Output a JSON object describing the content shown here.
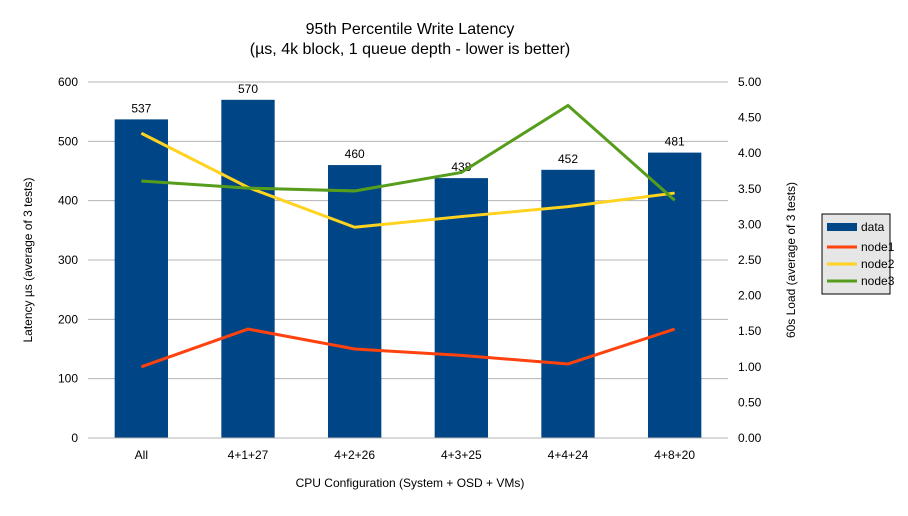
{
  "chart_data": {
    "type": "bar+line",
    "title": "95th Percentile Write Latency",
    "subtitle": "(µs, 4k block, 1 queue depth - lower is better)",
    "xlabel": "CPU Configuration (System + OSD + VMs)",
    "ylabel": "Latency µs (average of 3 tests)",
    "y2label": "60s Load (average of 3 tests)",
    "categories": [
      "All",
      "4+1+27",
      "4+2+26",
      "4+3+25",
      "4+4+24",
      "4+8+20"
    ],
    "ylim": [
      0,
      600
    ],
    "yticks": [
      "0",
      "100",
      "200",
      "300",
      "400",
      "500",
      "600"
    ],
    "y2lim": [
      0,
      5
    ],
    "y2ticks": [
      "0.00",
      "0.50",
      "1.00",
      "1.50",
      "2.00",
      "2.50",
      "3.00",
      "3.50",
      "4.00",
      "4.50",
      "5.00"
    ],
    "grid": true,
    "legend_position": "right",
    "bar_series": {
      "name": "data",
      "color": "#004586",
      "values": [
        537,
        570,
        460,
        438,
        452,
        481
      ],
      "labels": [
        "537",
        "570",
        "460",
        "438",
        "452",
        "481"
      ]
    },
    "line_series": [
      {
        "name": "node1",
        "color": "#ff420e",
        "axis": "right",
        "values": [
          1.0,
          1.53,
          1.25,
          1.16,
          1.04,
          1.53
        ]
      },
      {
        "name": "node2",
        "color": "#ffd320",
        "axis": "right",
        "values": [
          4.28,
          3.52,
          2.96,
          3.11,
          3.25,
          3.44
        ]
      },
      {
        "name": "node3",
        "color": "#579d1c",
        "axis": "right",
        "values": [
          3.61,
          3.51,
          3.47,
          3.73,
          4.67,
          3.34
        ]
      }
    ]
  }
}
